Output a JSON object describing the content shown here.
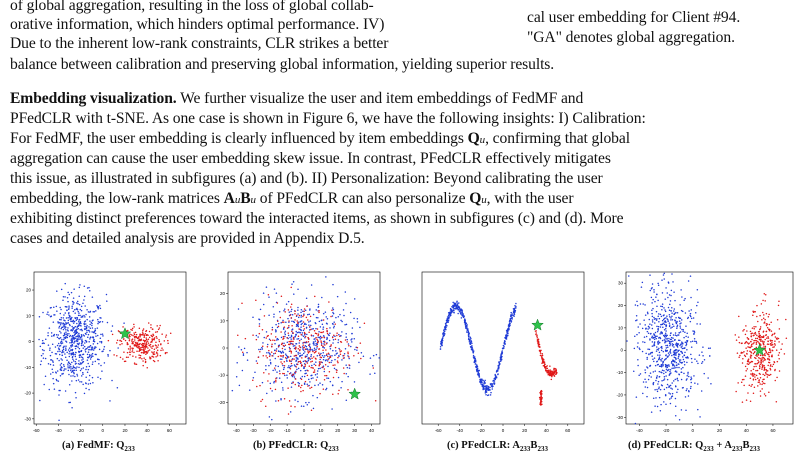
{
  "top_left": {
    "line1": "of global aggregation, resulting in the loss of global collab-",
    "line2": "orative information, which hinders optimal performance. IV)",
    "line3": "Due to the inherent low-rank constraints, CLR strikes a better"
  },
  "top_right": {
    "line1": "cal user embedding for Client #94.",
    "line2": "\"GA\" denotes global aggregation."
  },
  "continuation": "balance between calibration and preserving global information, yielding superior results.",
  "paragraph": {
    "heading": "Embedding visualization.",
    "line1": " We further visualize the user and item embeddings of FedMF and",
    "line2": "PFedCLR with t-SNE. As one case is shown in Figure 6, we have the following insights: I) Calibration:",
    "line3a": "For FedMF, the user embedding is clearly influenced by item embeddings ",
    "Q_symbol": "Q",
    "u_sub": "u",
    "A_symbol": "A",
    "B_symbol": "B",
    "line3b": ", confirming that global",
    "line4": "aggregation can cause the user embedding skew issue. In contrast, PFedCLR effectively mitigates",
    "line5": "this issue, as illustrated in subfigures (a) and (b). II) Personalization: Beyond calibrating the user",
    "line6a": "embedding, the low-rank matrices ",
    "line6b": " of PFedCLR can also personalize ",
    "line6c": ", with the user",
    "line7": "exhibiting distinct preferences toward the interacted items, as shown in subfigures (c) and (d). More",
    "line8": "cases and detailed analysis are provided in Appendix D.5."
  },
  "captions": {
    "a": {
      "prefix": "(a) FedMF:",
      "sym": "Q",
      "sub": "233"
    },
    "b": {
      "prefix": "(b) PFedCLR:",
      "sym": "Q",
      "sub": "233"
    },
    "c": {
      "prefix": "(c) PFedCLR:",
      "sym1": "A",
      "sym2": "B",
      "sub": "233"
    },
    "d": {
      "prefix": "(d) PFedCLR:",
      "sym1": "Q",
      "sym2": "A",
      "sym3": "B",
      "sub": "233"
    }
  },
  "colors": {
    "blue": "#1f3bd6",
    "red": "#e01818",
    "star": "#2ec24a"
  },
  "chart_data": [
    {
      "type": "scatter",
      "xticks": [
        "-60",
        "-40",
        "-20",
        "0",
        "20",
        "40",
        "60"
      ],
      "yticks": [
        "20",
        "10",
        "0",
        "-10",
        "-20",
        "-30"
      ],
      "xlim": [
        -62,
        75
      ],
      "ylim": [
        -32,
        27
      ],
      "series": [
        {
          "color": "blue",
          "shape": "cluster",
          "center": [
            -25,
            0
          ],
          "spread": [
            28,
            18
          ],
          "n": 700
        },
        {
          "color": "red",
          "shape": "cluster",
          "center": [
            35,
            -1
          ],
          "spread": [
            20,
            7
          ],
          "n": 300
        }
      ],
      "star": [
        20,
        3
      ]
    },
    {
      "type": "scatter",
      "xticks": [
        "-40",
        "-30",
        "-20",
        "-10",
        "0",
        "10",
        "20",
        "30",
        "40"
      ],
      "yticks": [
        "20",
        "10",
        "0",
        "-10",
        "-20"
      ],
      "xlim": [
        -45,
        45
      ],
      "ylim": [
        -28,
        28
      ],
      "series": [
        {
          "color": "blue",
          "shape": "cluster",
          "center": [
            0,
            0
          ],
          "spread": [
            30,
            18
          ],
          "n": 600
        },
        {
          "color": "red",
          "shape": "cluster",
          "center": [
            0,
            0
          ],
          "spread": [
            30,
            18
          ],
          "n": 350
        }
      ],
      "star": [
        30,
        -17
      ]
    },
    {
      "type": "scatter",
      "xticks": [
        "-60",
        "-40",
        "-20",
        "0",
        "20",
        "40",
        "60"
      ],
      "yticks": [],
      "xlim": [
        -75,
        75
      ],
      "ylim": [
        -40,
        40
      ],
      "series": [
        {
          "color": "blue",
          "shape": "curve",
          "xrange": [
            -58,
            12
          ],
          "n": 600
        },
        {
          "color": "red",
          "shape": "curve",
          "xrange": [
            30,
            50
          ],
          "n": 200
        }
      ],
      "star": [
        32,
        12
      ]
    },
    {
      "type": "scatter",
      "xticks": [
        "-40",
        "-20",
        "0",
        "20",
        "40",
        "60"
      ],
      "yticks": [
        "30",
        "20",
        "10",
        "0",
        "-10",
        "-20",
        "-30"
      ],
      "xlim": [
        -50,
        75
      ],
      "ylim": [
        -33,
        35
      ],
      "series": [
        {
          "color": "blue",
          "shape": "cluster",
          "center": [
            -18,
            2
          ],
          "spread": [
            22,
            25
          ],
          "n": 700
        },
        {
          "color": "red",
          "shape": "cluster",
          "center": [
            50,
            0
          ],
          "spread": [
            15,
            18
          ],
          "n": 400
        }
      ],
      "star": [
        50,
        0
      ]
    }
  ]
}
